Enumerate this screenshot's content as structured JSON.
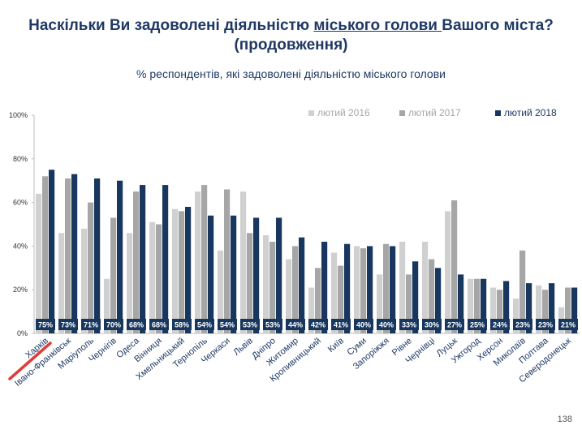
{
  "header": {
    "title_part1": "Наскільки Ви задоволені діяльністю ",
    "title_underlined": "міського голови ",
    "title_part2": "Вашого міста?",
    "title_line2": "(продовження)",
    "subtitle": "% респондентів, які задоволені діяльністю міського голови"
  },
  "page_number": "138",
  "colors": {
    "s2016": "#d0d0d0",
    "s2017": "#a6a6a6",
    "s2018": "#17375e",
    "highlight": "#e23b3b",
    "title": "#1f3864"
  },
  "chart_data": {
    "type": "bar",
    "categories": [
      "Харків",
      "Івано-Франківськ",
      "Маріуполь",
      "Чернігів",
      "Одеса",
      "Вінниця",
      "Хмельницький",
      "Тернопіль",
      "Черкаси",
      "Львів",
      "Дніпро",
      "Житомир",
      "Кропивницький",
      "Київ",
      "Суми",
      "Запоріжжя",
      "Рівне",
      "Чернівці",
      "Луцьк",
      "Ужгород",
      "Херсон",
      "Миколаїв",
      "Полтава",
      "Северодонецьк"
    ],
    "series": [
      {
        "name": "лютий 2016",
        "values": [
          64,
          46,
          48,
          25,
          46,
          51,
          57,
          65,
          38,
          65,
          45,
          34,
          21,
          37,
          40,
          27,
          42,
          42,
          56,
          25,
          21,
          16,
          22,
          12
        ]
      },
      {
        "name": "лютий 2017",
        "values": [
          72,
          71,
          60,
          53,
          65,
          50,
          56,
          68,
          66,
          46,
          42,
          40,
          30,
          31,
          39,
          41,
          27,
          34,
          61,
          25,
          20,
          38,
          20,
          21
        ]
      },
      {
        "name": "лютий 2018",
        "values": [
          75,
          73,
          71,
          70,
          68,
          68,
          58,
          54,
          54,
          53,
          53,
          44,
          42,
          41,
          40,
          40,
          33,
          30,
          27,
          25,
          24,
          23,
          23,
          21
        ]
      }
    ],
    "value_labels": [
      "75%",
      "73%",
      "71%",
      "70%",
      "68%",
      "68%",
      "58%",
      "54%",
      "54%",
      "53%",
      "53%",
      "44%",
      "42%",
      "41%",
      "40%",
      "40%",
      "33%",
      "30%",
      "27%",
      "25%",
      "24%",
      "23%",
      "23%",
      "21%"
    ],
    "yticks": [
      "0%",
      "20%",
      "40%",
      "60%",
      "80%",
      "100%"
    ],
    "ylim": [
      0,
      100
    ],
    "highlight_category": "Харків",
    "legend_position": "top-right"
  }
}
